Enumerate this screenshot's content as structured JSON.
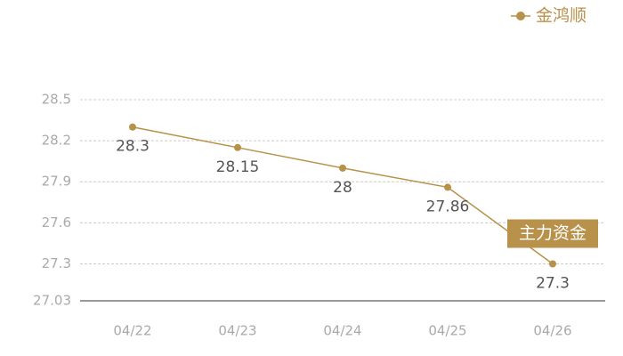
{
  "chart_data": {
    "type": "line",
    "categories": [
      "04/22",
      "04/23",
      "04/24",
      "04/25",
      "04/26"
    ],
    "series": [
      {
        "name": "金鸿顺",
        "color": "#b8914a",
        "values": [
          28.3,
          28.15,
          28,
          27.86,
          27.3
        ]
      }
    ],
    "ylim": [
      27.03,
      28.5
    ],
    "yticks": [
      27.03,
      27.3,
      27.6,
      27.9,
      28.2,
      28.5
    ],
    "grid": true,
    "legend": "top-right",
    "annotation": "主力资金"
  }
}
